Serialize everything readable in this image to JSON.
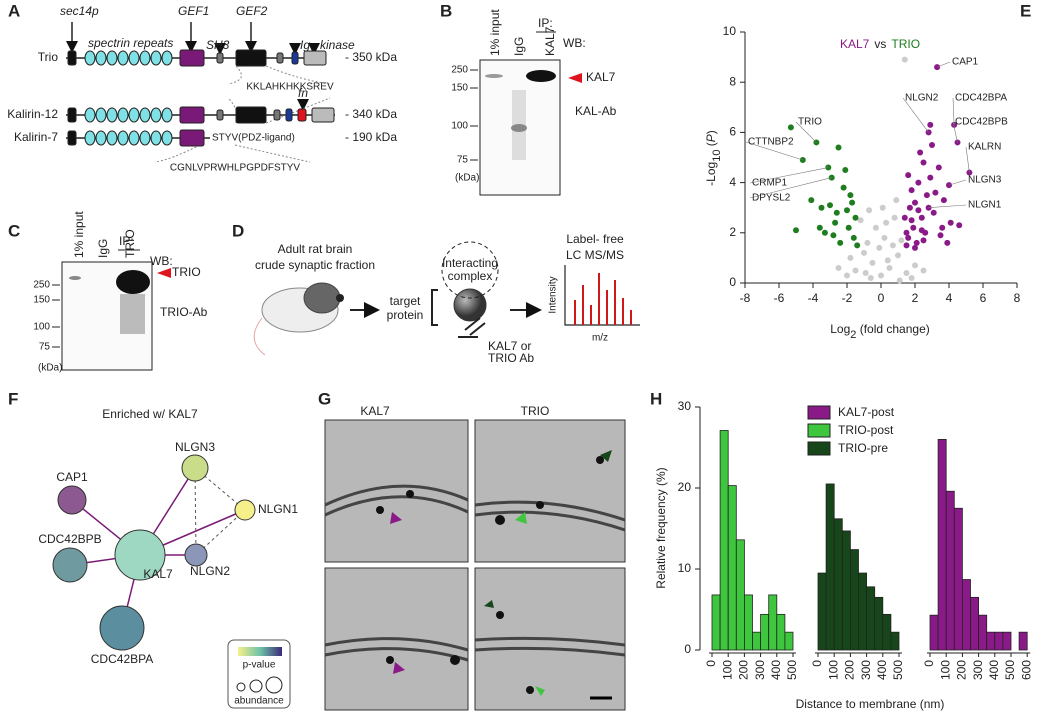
{
  "panel_letters": [
    "A",
    "B",
    "C",
    "D",
    "E",
    "F",
    "G",
    "H"
  ],
  "panel_a": {
    "domain_labels": [
      "sec14p",
      "spectrin repeats",
      "GEF1",
      "SH3",
      "GEF2",
      "Ig",
      "kinase",
      "fn"
    ],
    "proteins": [
      "Trio",
      "Kalirin-12",
      "Kalirin-7"
    ],
    "sizes": [
      "- 350 kDa",
      "- 340 kDa",
      "- 190 kDa"
    ],
    "sequences": [
      "KKLAHKHKKSREV",
      "STYV(PDZ-ligand)",
      "CGNLVPRWHLPGPDFSTYV"
    ]
  },
  "panel_b": {
    "lanes": [
      "1% input",
      "IgG",
      "KAL7"
    ],
    "ip": "IP:",
    "wb": "WB:",
    "band": "KAL7",
    "antibody": "KAL-Ab",
    "markers": [
      "250",
      "150",
      "100",
      "75"
    ],
    "unit": "(kDa)"
  },
  "panel_c": {
    "lanes": [
      "1% input",
      "IgG",
      "TRIO"
    ],
    "ip": "IP:",
    "wb": "WB:",
    "band": "TRIO",
    "antibody": "TRIO-Ab",
    "markers": [
      "250",
      "150",
      "100",
      "75"
    ],
    "unit": "(kDa)"
  },
  "panel_d": {
    "source": [
      "Adult rat brain",
      "crude synaptic fraction"
    ],
    "target": [
      "target",
      "protein"
    ],
    "complex": [
      "Interacting",
      "complex"
    ],
    "antibody": [
      "KAL7 or",
      "TRIO Ab"
    ],
    "method": [
      "Label- free",
      "LC MS/MS"
    ],
    "y_axis": "Intensity",
    "x_axis": "m/z"
  },
  "panel_f": {
    "title": "Enriched w/ KAL7",
    "nodes": [
      "KAL7",
      "NLGN3",
      "NLGN1",
      "NLGN2",
      "CAP1",
      "CDC42BPB",
      "CDC42BPA"
    ],
    "legend": [
      "p-value",
      "abundance"
    ]
  },
  "panel_g": {
    "columns": [
      "KAL7",
      "TRIO"
    ]
  },
  "chart_data": [
    {
      "type": "scatter",
      "title": [
        "KAL7",
        "vs",
        "TRIO"
      ],
      "title_colors": [
        "#8b1a89",
        "#222",
        "#1e7d1e"
      ],
      "xlabel": [
        "Log",
        "2",
        " (fold change)"
      ],
      "ylabel": [
        "-Log",
        "10",
        " (",
        "P",
        ")"
      ],
      "xlim": [
        -8,
        8
      ],
      "xticks": [
        -8,
        -6,
        -4,
        -2,
        0,
        2,
        4,
        6,
        8
      ],
      "ylim": [
        0,
        10
      ],
      "yticks": [
        0,
        2,
        4,
        6,
        8,
        10
      ],
      "series": [
        {
          "color": "#cccccc",
          "x": [
            0,
            -0.5,
            0.5,
            -1,
            1,
            -1.5,
            1.5,
            0.2,
            -0.3,
            0.8,
            -0.8,
            1.2,
            -1.2,
            0.4,
            -0.6,
            2,
            -2,
            0.1,
            -0.1,
            0.7,
            -0.7,
            1.8,
            -1.8,
            2.5,
            -2.5,
            0.3,
            0.9,
            -0.9,
            1.1,
            1.4
          ],
          "values": [
            0.3,
            0.8,
            0.6,
            1.2,
            1.1,
            0.5,
            0.4,
            1.8,
            2.2,
            2.6,
            1.6,
            1.7,
            2.5,
            0.9,
            0.2,
            0.7,
            0.3,
            3.0,
            1.4,
            1.5,
            2.9,
            0.2,
            1.0,
            0.5,
            0.6,
            2.4,
            3.3,
            0.4,
            0.1,
            8.9
          ]
        },
        {
          "color": "#8b1a89",
          "x": [
            3.3,
            2.9,
            4.3,
            4.5,
            5.2,
            4.0,
            2.8,
            1.5,
            1.8,
            2.0,
            2.2,
            2.5,
            1.6,
            1.9,
            2.4,
            2.7,
            3.0,
            3.4,
            3.7,
            4.1,
            1.7,
            2.1,
            2.6,
            3.1,
            3.5,
            1.4,
            1.8,
            2.3,
            2.9,
            3.6,
            2.0,
            2.5,
            3.2,
            1.6,
            2.2,
            4.6,
            3.9,
            2.8,
            1.5,
            2.4
          ],
          "values": [
            8.6,
            6.3,
            6.3,
            5.6,
            4.4,
            3.9,
            3.0,
            2.0,
            2.5,
            3.2,
            4.0,
            4.8,
            1.8,
            2.2,
            2.6,
            3.5,
            5.5,
            4.6,
            3.3,
            2.4,
            3.0,
            1.6,
            2.0,
            2.8,
            1.9,
            2.6,
            3.7,
            5.2,
            4.2,
            2.2,
            1.4,
            1.7,
            3.6,
            4.3,
            2.9,
            2.3,
            1.6,
            6.0,
            1.5,
            2.1
          ]
        },
        {
          "color": "#1e7d1e",
          "x": [
            -5.3,
            -3.8,
            -4.6,
            -3.1,
            -2.9,
            -2.5,
            -2.2,
            -1.8,
            -1.5,
            -3.5,
            -2.7,
            -2.0,
            -1.6,
            -3.3,
            -2.4,
            -1.9,
            -4.1,
            -3.0,
            -2.6,
            -1.4,
            -2.1,
            -1.7,
            -3.6,
            -2.8,
            -5.0
          ],
          "values": [
            6.2,
            5.6,
            4.9,
            4.6,
            4.2,
            5.4,
            3.8,
            3.5,
            2.6,
            3.0,
            2.4,
            2.9,
            1.8,
            2.0,
            1.6,
            2.2,
            3.3,
            3.1,
            2.8,
            1.5,
            4.5,
            3.2,
            2.2,
            1.9,
            2.1
          ]
        }
      ],
      "annotations": [
        {
          "text": "CAP1",
          "x": 3.3,
          "y": 8.6,
          "color": "#8b1a89"
        },
        {
          "text": "NLGN2",
          "x": 2.8,
          "y": 6.0,
          "color": "#8b1a89"
        },
        {
          "text": "CDC42BPA",
          "x": 4.3,
          "y": 6.3,
          "color": "#8b1a89"
        },
        {
          "text": "CDC42BPB",
          "x": 4.5,
          "y": 5.6,
          "color": "#8b1a89"
        },
        {
          "text": "KALRN",
          "x": 5.2,
          "y": 4.4,
          "color": "#8b1a89"
        },
        {
          "text": "NLGN3",
          "x": 4.0,
          "y": 3.9,
          "color": "#8b1a89"
        },
        {
          "text": "NLGN1",
          "x": 2.8,
          "y": 3.0,
          "color": "#8b1a89"
        },
        {
          "text": "TRIO",
          "x": -3.8,
          "y": 5.6,
          "color": "#1e7d1e"
        },
        {
          "text": "CTTNBP2",
          "x": -4.6,
          "y": 4.9,
          "color": "#1e7d1e"
        },
        {
          "text": "CRMP1",
          "x": -3.1,
          "y": 4.6,
          "color": "#1e7d1e"
        },
        {
          "text": "DPYSL2",
          "x": -2.9,
          "y": 4.2,
          "color": "#1e7d1e"
        }
      ]
    },
    {
      "type": "histogram",
      "xlabel": "Distance to membrane (nm)",
      "ylabel": "Relative frequency (%)",
      "ylim": [
        0,
        30
      ],
      "yticks": [
        0,
        10,
        20,
        30
      ],
      "series": [
        {
          "name": "KAL7-post",
          "color": "#8b1a89",
          "bins": [
            0,
            50,
            100,
            150,
            200,
            250,
            300,
            350,
            400,
            450,
            500,
            550,
            600
          ],
          "values": [
            4.3,
            26,
            19.6,
            17.5,
            8.7,
            6.5,
            4.3,
            2.2,
            2.2,
            2.2,
            0,
            2.2
          ],
          "xticks": [
            0,
            100,
            200,
            300,
            400,
            500,
            600
          ]
        },
        {
          "name": "TRIO-post",
          "color": "#3fc63f",
          "bins": [
            0,
            50,
            100,
            150,
            200,
            250,
            300,
            350,
            400,
            450,
            500
          ],
          "values": [
            6.8,
            27.1,
            20.3,
            13.6,
            6.8,
            2.2,
            4.4,
            6.8,
            4.4,
            2.2
          ],
          "xticks": [
            0,
            100,
            200,
            300,
            400,
            500
          ]
        },
        {
          "name": "TRIO-pre",
          "color": "#17461a",
          "bins": [
            0,
            50,
            100,
            150,
            200,
            250,
            300,
            350,
            400,
            450,
            500
          ],
          "values": [
            9.5,
            20.5,
            16.2,
            14.7,
            12.4,
            9.5,
            7.8,
            6.5,
            4.4,
            2.2
          ],
          "xticks": [
            0,
            100,
            200,
            300,
            400,
            500
          ]
        }
      ]
    }
  ]
}
